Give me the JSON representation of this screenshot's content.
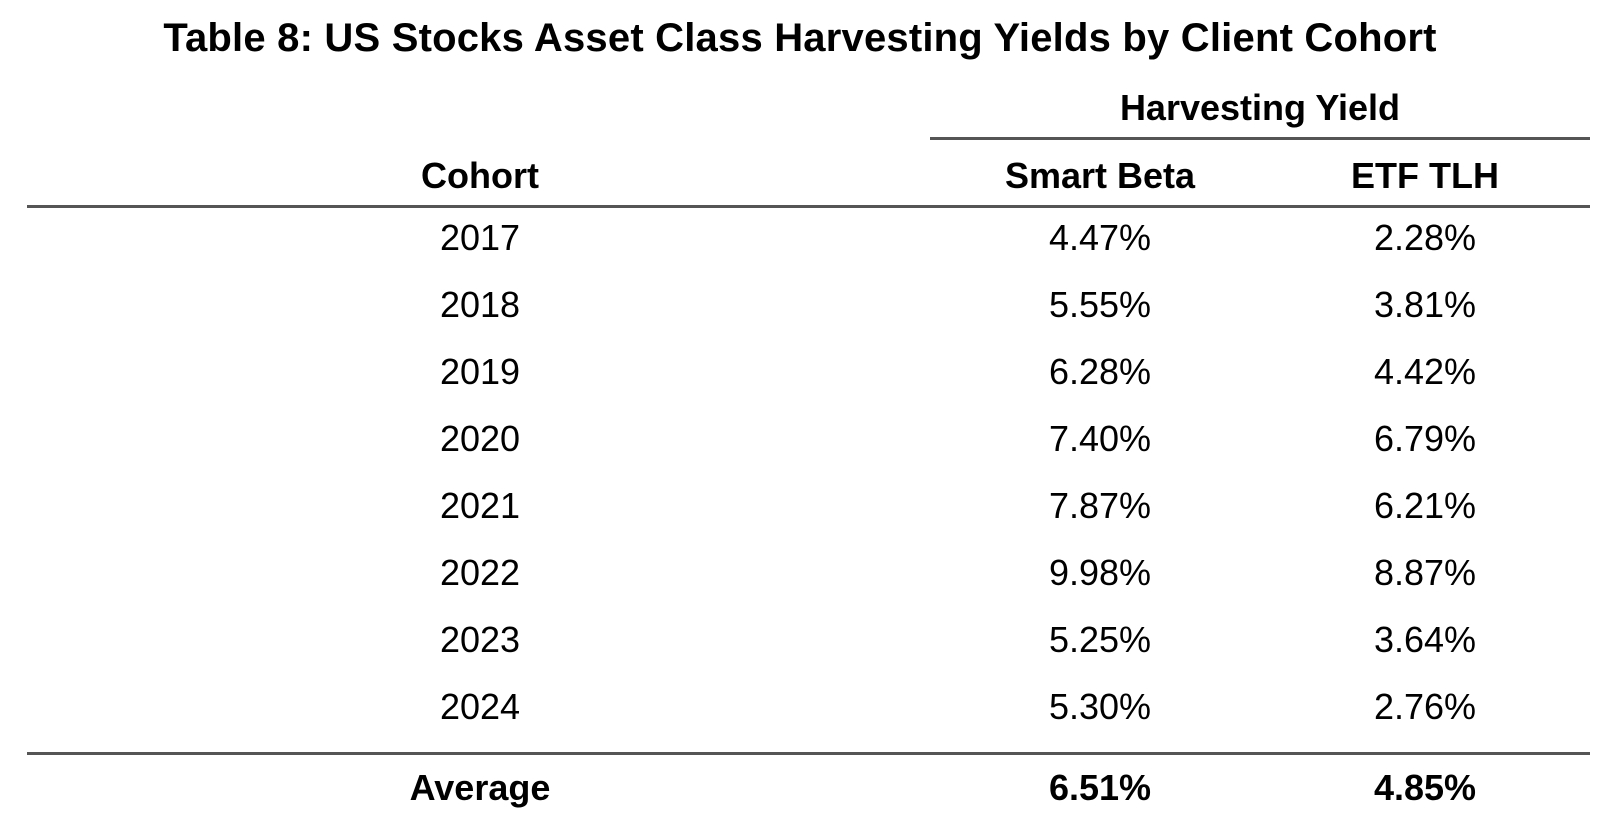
{
  "title": "Table 8: US Stocks Asset Class Harvesting Yields by Client Cohort",
  "group_header": "Harvesting Yield",
  "columns": {
    "cohort": "Cohort",
    "smart_beta": "Smart Beta",
    "etf_tlh": "ETF TLH"
  },
  "rows": [
    {
      "cohort": "2017",
      "smart_beta": "4.47%",
      "etf_tlh": "2.28%"
    },
    {
      "cohort": "2018",
      "smart_beta": "5.55%",
      "etf_tlh": "3.81%"
    },
    {
      "cohort": "2019",
      "smart_beta": "6.28%",
      "etf_tlh": "4.42%"
    },
    {
      "cohort": "2020",
      "smart_beta": "7.40%",
      "etf_tlh": "6.79%"
    },
    {
      "cohort": "2021",
      "smart_beta": "7.87%",
      "etf_tlh": "6.21%"
    },
    {
      "cohort": "2022",
      "smart_beta": "9.98%",
      "etf_tlh": "8.87%"
    },
    {
      "cohort": "2023",
      "smart_beta": "5.25%",
      "etf_tlh": "3.64%"
    },
    {
      "cohort": "2024",
      "smart_beta": "5.30%",
      "etf_tlh": "2.76%"
    }
  ],
  "average": {
    "cohort": "Average",
    "smart_beta": "6.51%",
    "etf_tlh": "4.85%"
  }
}
